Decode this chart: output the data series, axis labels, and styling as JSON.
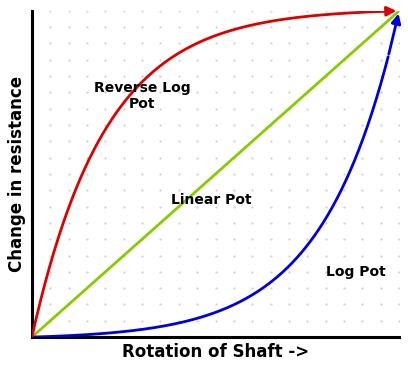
{
  "title": "",
  "xlabel": "Rotation of Shaft ->",
  "ylabel": "Change in resistance",
  "xlabel_fontsize": 12,
  "ylabel_fontsize": 12,
  "xlabel_fontweight": "bold",
  "ylabel_fontweight": "bold",
  "background_color": "#ffffff",
  "plot_bg_color": "#ffffff",
  "xlim": [
    0,
    1
  ],
  "ylim": [
    0,
    1
  ],
  "linear_color": "#88cc00",
  "log_color": "#0000dd",
  "revlog_color": "#dd0000",
  "label_linear": "Linear Pot",
  "label_log": "Log Pot",
  "label_revlog": "Reverse Log\nPot",
  "label_fontsize": 10,
  "label_fontweight": "bold",
  "dot_grid_color": "#cccccc",
  "linewidth": 2.0,
  "arrow_mutation_scale": 14
}
